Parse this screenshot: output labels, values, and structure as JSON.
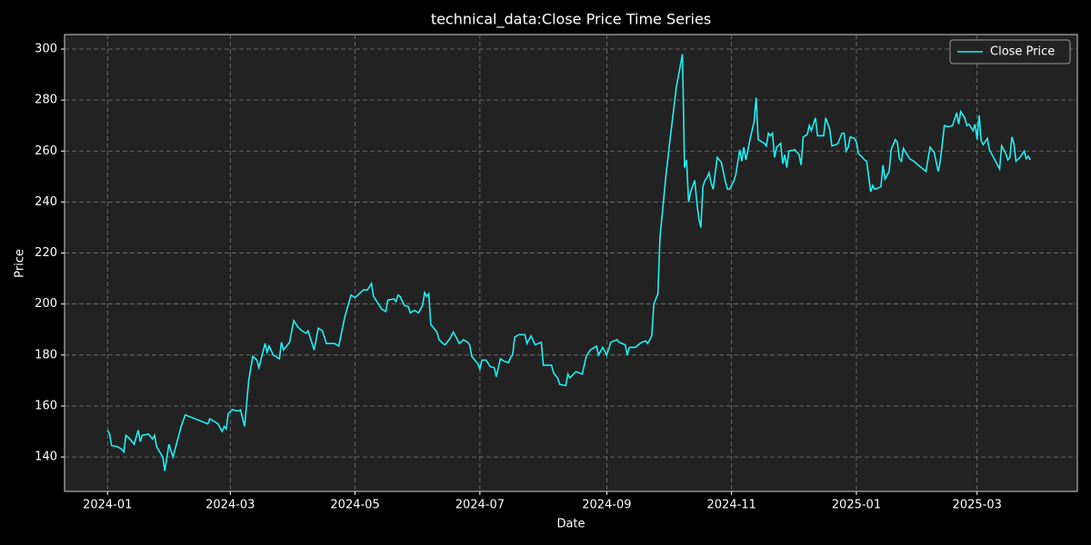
{
  "chart_data": {
    "type": "line",
    "title": "technical_data:Close Price Time Series",
    "x_label": "Date",
    "y_label": "Price",
    "x": [
      0,
      1,
      2,
      5,
      7,
      8,
      9,
      11,
      13,
      15,
      16,
      17,
      20,
      22,
      23,
      24,
      27,
      28,
      30,
      32,
      34,
      36,
      38,
      49,
      50,
      54,
      56,
      57,
      58,
      59,
      61,
      64,
      65,
      67,
      69,
      71,
      73,
      74,
      77,
      78,
      79,
      81,
      84,
      85,
      86,
      89,
      91,
      93,
      95,
      97,
      98,
      101,
      103,
      105,
      107,
      111,
      113,
      116,
      119,
      121,
      123,
      125,
      127,
      129,
      130,
      132,
      134,
      136,
      137,
      140,
      141,
      142,
      143,
      145,
      147,
      148,
      150,
      152,
      154,
      155,
      156,
      157,
      158,
      161,
      162,
      164,
      165,
      167,
      169,
      172,
      174,
      176,
      177,
      178,
      181,
      182,
      183,
      185,
      187,
      189,
      190,
      192,
      194,
      196,
      197,
      198,
      199,
      201,
      202,
      204,
      205,
      207,
      209,
      212,
      213,
      214,
      217,
      218,
      220,
      221,
      224,
      225,
      226,
      229,
      232,
      234,
      236,
      239,
      240,
      242,
      243,
      244,
      246,
      249,
      250,
      253,
      254,
      255,
      258,
      261,
      263,
      264,
      266,
      267,
      269,
      270,
      273,
      275,
      278,
      281,
      282,
      283,
      284,
      285,
      287,
      288,
      289,
      290,
      291,
      292,
      293,
      294,
      295,
      296,
      298,
      300,
      302,
      303,
      304,
      306,
      307,
      309,
      310,
      311,
      312,
      313,
      314,
      316,
      317,
      318,
      321,
      322,
      323,
      324,
      325,
      326,
      327,
      329,
      330,
      331,
      332,
      333,
      336,
      338,
      339,
      340,
      342,
      343,
      344,
      346,
      347,
      350,
      351,
      353,
      354,
      356,
      357,
      359,
      360,
      361,
      362,
      363,
      365,
      366,
      367,
      369,
      370,
      371,
      373,
      374,
      375,
      378,
      379,
      380,
      382,
      383,
      385,
      386,
      387,
      388,
      389,
      392,
      394,
      400,
      402,
      404,
      406,
      407,
      409,
      411,
      413,
      415,
      416,
      417,
      419,
      420,
      421,
      423,
      424,
      425,
      426,
      427,
      428,
      430,
      431,
      434,
      436,
      437,
      439,
      440,
      441,
      442,
      443,
      444,
      446,
      448,
      449,
      450,
      451
    ],
    "series": [
      {
        "name": "Close Price",
        "color": "#1ff0f5",
        "values": [
          150.5,
          149,
          144.5,
          144,
          143,
          142,
          148.5,
          147,
          145,
          150.5,
          146,
          148.5,
          149,
          147,
          148.5,
          144,
          140,
          134.5,
          145,
          140,
          146,
          152,
          156.5,
          153,
          155,
          153,
          150,
          152,
          151,
          157,
          158.5,
          158,
          158.5,
          152,
          170,
          179.5,
          178,
          175,
          184.5,
          181,
          183.5,
          180,
          178.5,
          185,
          182,
          185,
          193.5,
          191,
          189.5,
          188.5,
          189.5,
          182,
          190.5,
          189.5,
          184.5,
          184.5,
          183.5,
          195,
          203.5,
          202.5,
          204,
          205.5,
          205.5,
          208,
          203,
          200.5,
          198,
          197,
          201.5,
          202,
          201,
          203.5,
          203,
          199.5,
          199,
          196.5,
          197.5,
          196.5,
          199.5,
          204.5,
          203,
          204,
          192,
          189,
          186,
          184.5,
          184,
          186,
          189,
          184.5,
          186,
          185,
          184,
          179.5,
          176.5,
          174.5,
          178,
          178,
          175.5,
          175,
          171.5,
          178.5,
          177.5,
          177,
          179,
          180,
          187,
          188,
          188,
          188,
          184.5,
          187.5,
          184,
          185,
          176,
          176,
          176,
          173,
          171,
          168.5,
          168,
          172.5,
          171,
          173.5,
          172.5,
          179.5,
          182,
          183.5,
          180,
          183,
          181.5,
          180,
          185,
          186,
          185,
          184,
          180,
          183,
          183,
          185,
          185.5,
          184.5,
          187.5,
          200,
          204,
          226,
          251,
          265,
          285,
          298,
          253.5,
          256.5,
          240,
          244,
          248.5,
          240,
          233.5,
          230,
          246,
          248.5,
          249.5,
          251.5,
          247.5,
          245,
          257.5,
          255.5,
          248,
          245,
          245,
          248,
          250.5,
          260.5,
          256,
          261.5,
          256.5,
          260.5,
          264.5,
          271.5,
          281,
          264.5,
          263,
          262,
          267,
          266,
          267,
          257.5,
          261.5,
          263,
          255,
          258.5,
          253.5,
          260,
          260.5,
          258.5,
          254.5,
          265.5,
          266.5,
          270,
          268,
          273,
          266,
          266,
          273,
          268.5,
          262,
          262.5,
          263,
          267,
          267,
          260,
          261.5,
          265.5,
          265,
          263.5,
          259,
          257.5,
          256.5,
          256,
          244,
          246.5,
          245,
          246,
          254.5,
          249,
          252,
          260.5,
          264.5,
          263.5,
          257,
          256,
          261,
          257,
          256,
          252,
          261.5,
          259.5,
          252,
          256,
          270,
          269.5,
          270,
          275,
          270.5,
          275.5,
          273,
          270,
          270.5,
          268,
          270.5,
          264.5,
          274,
          264,
          262.5,
          265,
          260.5,
          256,
          253,
          262,
          259,
          256.5,
          257.5,
          265.5,
          263,
          256,
          257.5,
          260,
          257,
          258,
          256.5
        ]
      }
    ],
    "xlim": [
      -21,
      474
    ],
    "xticks": [
      {
        "value": 0,
        "label": "2024-01"
      },
      {
        "value": 60,
        "label": "2024-03"
      },
      {
        "value": 121,
        "label": "2024-05"
      },
      {
        "value": 182,
        "label": "2024-07"
      },
      {
        "value": 244,
        "label": "2024-09"
      },
      {
        "value": 305,
        "label": "2024-11"
      },
      {
        "value": 366,
        "label": "2025-01"
      },
      {
        "value": 425,
        "label": "2025-03"
      }
    ],
    "ylim": [
      126.5,
      305.7
    ],
    "yticks": [
      140,
      160,
      180,
      200,
      220,
      240,
      260,
      280,
      300
    ],
    "grid": true,
    "legend": "upper right"
  }
}
